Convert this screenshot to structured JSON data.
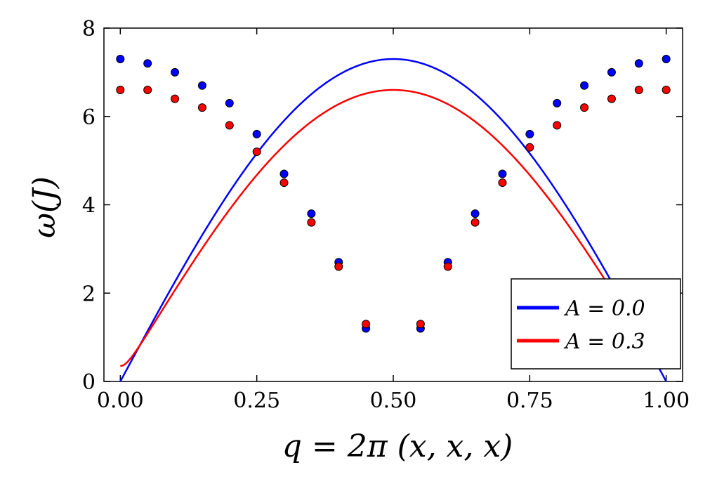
{
  "chart_data": {
    "type": "line",
    "title": "",
    "xlabel": "q = 2π (x, x, x)",
    "ylabel": "ω(J)",
    "xlim": [
      -0.03,
      1.03
    ],
    "ylim": [
      0,
      8
    ],
    "xticks": [
      0.0,
      0.25,
      0.5,
      0.75,
      1.0
    ],
    "xtick_labels": [
      "0.00",
      "0.25",
      "0.50",
      "0.75",
      "1.00"
    ],
    "yticks": [
      0,
      2,
      4,
      6,
      8
    ],
    "ytick_labels": [
      "0",
      "2",
      "4",
      "6",
      "8"
    ],
    "grid": false,
    "legend_position": "bottom-right",
    "series": [
      {
        "name": "A = 0.0",
        "color": "#0000ff",
        "gap": 0.0,
        "max": 7.3,
        "points_x": [
          0.0,
          0.05,
          0.1,
          0.15,
          0.2,
          0.25,
          0.3,
          0.35,
          0.4,
          0.45,
          0.55,
          0.6,
          0.65,
          0.7,
          0.75,
          0.8,
          0.85,
          0.9,
          0.95,
          1.0
        ],
        "points_y": [
          7.3,
          7.2,
          7.0,
          6.7,
          6.3,
          5.6,
          4.7,
          3.8,
          2.7,
          1.2,
          1.2,
          2.7,
          3.8,
          4.7,
          5.6,
          6.3,
          6.7,
          7.0,
          7.2,
          7.3
        ]
      },
      {
        "name": "A = 0.3",
        "color": "#ff0000",
        "gap": 0.35,
        "max": 6.6,
        "points_x": [
          0.0,
          0.05,
          0.1,
          0.15,
          0.2,
          0.25,
          0.3,
          0.35,
          0.4,
          0.45,
          0.55,
          0.6,
          0.65,
          0.7,
          0.75,
          0.8,
          0.85,
          0.9,
          0.95,
          1.0
        ],
        "points_y": [
          6.6,
          6.6,
          6.4,
          6.2,
          5.8,
          5.2,
          4.5,
          3.6,
          2.6,
          1.3,
          1.3,
          2.6,
          3.6,
          4.5,
          5.3,
          5.8,
          6.2,
          6.4,
          6.6,
          6.6
        ]
      }
    ]
  }
}
